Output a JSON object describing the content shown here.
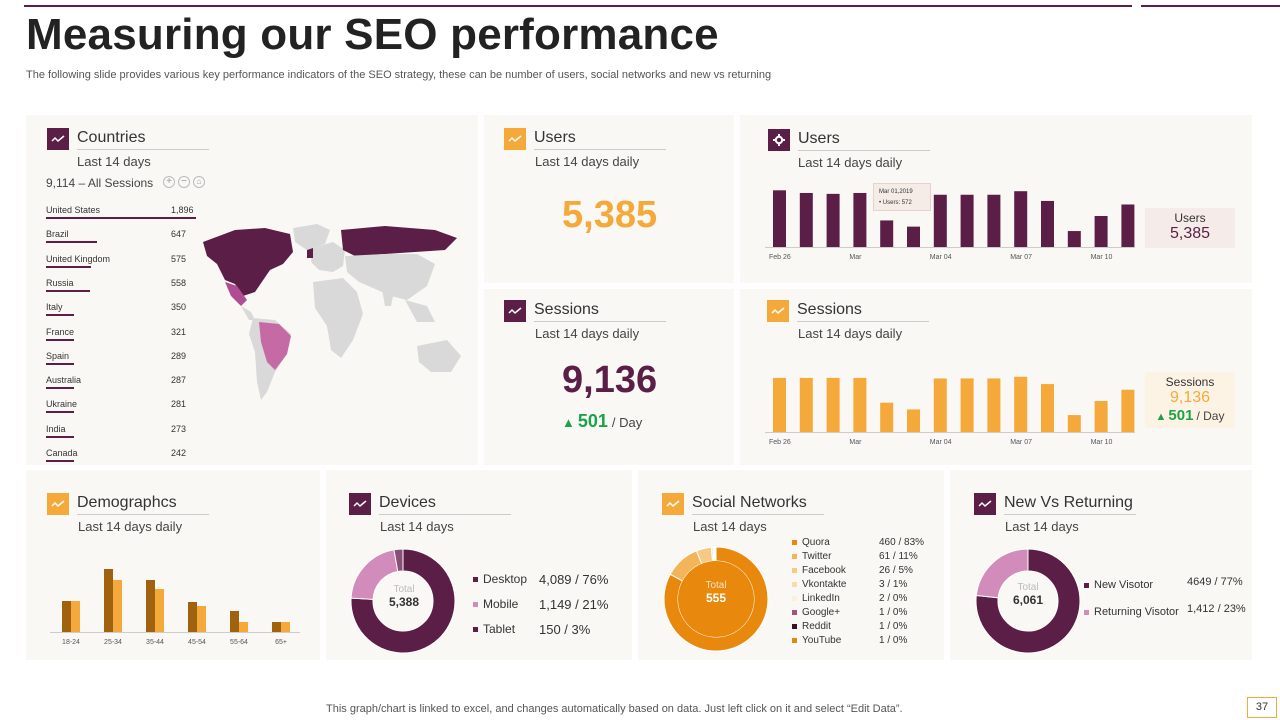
{
  "title": "Measuring our SEO performance",
  "subtitle": "The following slide provides various key performance indicators of the SEO strategy, these can be number of users, social networks and new vs returning",
  "footer": "This graph/chart is linked to excel,  and changes automatically based on data. Just left click on it and select “Edit Data”.",
  "page_number": "37",
  "colors": {
    "purple": "#5b1f47",
    "orange": "#f4a93a",
    "green": "#1aa34a",
    "pink": "#d18cbb"
  },
  "countries": {
    "title": "Countries",
    "period": "Last 14 days",
    "sessions_label": "9,114 – All Sessions",
    "rows": [
      {
        "name": "United States",
        "value": "1,896",
        "n": 1896
      },
      {
        "name": "Brazil",
        "value": "647",
        "n": 647
      },
      {
        "name": "United Kingdom",
        "value": "575",
        "n": 575
      },
      {
        "name": "Russia",
        "value": "558",
        "n": 558
      },
      {
        "name": "Italy",
        "value": "350",
        "n": 350
      },
      {
        "name": "France",
        "value": "321",
        "n": 321
      },
      {
        "name": "Spain",
        "value": "289",
        "n": 289
      },
      {
        "name": "Australia",
        "value": "287",
        "n": 287
      },
      {
        "name": "Ukraine",
        "value": "281",
        "n": 281
      },
      {
        "name": "India",
        "value": "273",
        "n": 273
      },
      {
        "name": "Canada",
        "value": "242",
        "n": 242
      }
    ]
  },
  "users_kpi": {
    "title": "Users",
    "period": "Last 14 days daily",
    "value": "5,385"
  },
  "sessions_kpi": {
    "title": "Sessions",
    "period": "Last 14 days daily",
    "value": "9,136",
    "delta": "501",
    "delta_unit": "/ Day"
  },
  "users_chart_panel": {
    "title": "Users",
    "period": "Last 14 days daily",
    "side_label": "Users",
    "side_value": "5,385",
    "tooltip_date": "Mar 01,2019",
    "tooltip_value": "Users: 572"
  },
  "sessions_chart_panel": {
    "title": "Sessions",
    "period": "Last 14 days daily",
    "side_label": "Sessions",
    "side_value": "9,136",
    "side_delta": "501",
    "side_delta_unit": "/ Day"
  },
  "demographics": {
    "title": "Demographcs",
    "period": "Last 14 days daily"
  },
  "devices": {
    "title": "Devices",
    "period": "Last 14 days",
    "total_label": "Total",
    "total_value": "5,388",
    "items": [
      {
        "name": "Desktop",
        "value": "4,089 / 76%",
        "color": "#5b1f47"
      },
      {
        "name": "Mobile",
        "value": "1,149 / 21%",
        "color": "#d18cbb"
      },
      {
        "name": "Tablet",
        "value": "150 / 3%",
        "color": "#5b1f47"
      }
    ]
  },
  "social": {
    "title": "Social Networks",
    "period": "Last 14 days",
    "total_label": "Total",
    "total_value": "555",
    "items": [
      {
        "name": "Quora",
        "value": "460 / 83%",
        "color": "#e8880c"
      },
      {
        "name": "Twitter",
        "value": "61 / 11%",
        "color": "#f4b55a"
      },
      {
        "name": "Facebook",
        "value": "26 / 5%",
        "color": "#f7c982"
      },
      {
        "name": "Vkontakte",
        "value": "3 / 1%",
        "color": "#fadbb0"
      },
      {
        "name": "LinkedIn",
        "value": "2 / 0%",
        "color": "#fcefdc"
      },
      {
        "name": "Google+",
        "value": "1 / 0%",
        "color": "#a0557f"
      },
      {
        "name": "Reddit",
        "value": "1 / 0%",
        "color": "#3a1230"
      },
      {
        "name": "YouTube",
        "value": "1 / 0%",
        "color": "#d98a1a"
      }
    ]
  },
  "new_vs_returning": {
    "title": "New Vs Returning",
    "period": "Last 14 days",
    "total_label": "Total",
    "total_value": "6,061",
    "items": [
      {
        "name": "New Visotor",
        "value": "4649 / 77%",
        "color": "#5b1f47"
      },
      {
        "name": "Returning Visotor",
        "value": "1,412 / 23%",
        "color": "#d18cbb"
      }
    ]
  },
  "chart_data": [
    {
      "type": "bar",
      "title": "Users",
      "x_tick_labels": [
        "Feb 26",
        "Mar",
        "Mar 04",
        "Mar 07",
        "Mar 10"
      ],
      "values": [
        640,
        610,
        600,
        610,
        300,
        230,
        590,
        590,
        590,
        630,
        520,
        180,
        350,
        480
      ],
      "ylim": [
        0,
        700
      ],
      "color": "#5b1f47"
    },
    {
      "type": "bar",
      "title": "Sessions",
      "x_tick_labels": [
        "Feb 26",
        "Mar",
        "Mar 04",
        "Mar 07",
        "Mar 10"
      ],
      "values": [
        960,
        960,
        960,
        960,
        520,
        400,
        950,
        950,
        950,
        980,
        850,
        300,
        550,
        750
      ],
      "ylim": [
        0,
        1100
      ],
      "color": "#f4a93a"
    },
    {
      "type": "bar",
      "title": "Demographcs",
      "categories": [
        "18-24",
        "25-34",
        "35-44",
        "45-54",
        "55-64",
        "65+"
      ],
      "series": [
        {
          "values": [
            31,
            63,
            52,
            30,
            21,
            10
          ],
          "color": "#a0620f"
        },
        {
          "values": [
            31,
            52,
            43,
            26,
            10,
            10
          ],
          "color": "#f4a93a"
        }
      ],
      "ylim": [
        0,
        70
      ]
    },
    {
      "type": "pie",
      "title": "Devices",
      "labels": [
        "Desktop",
        "Mobile",
        "Tablet"
      ],
      "values": [
        4089,
        1149,
        150
      ],
      "colors": [
        "#5b1f47",
        "#d18cbb",
        "#8a4f77"
      ]
    },
    {
      "type": "pie",
      "title": "Social Networks",
      "labels": [
        "Quora",
        "Twitter",
        "Facebook",
        "Vkontakte",
        "LinkedIn",
        "Google+",
        "Reddit",
        "YouTube"
      ],
      "values": [
        460,
        61,
        26,
        3,
        2,
        1,
        1,
        1
      ],
      "colors": [
        "#e8880c",
        "#f4b55a",
        "#f7c982",
        "#fadbb0",
        "#fcefdc",
        "#a0557f",
        "#3a1230",
        "#d98a1a"
      ]
    },
    {
      "type": "pie",
      "title": "New Vs Returning",
      "labels": [
        "New Visotor",
        "Returning Visotor"
      ],
      "values": [
        4649,
        1412
      ],
      "colors": [
        "#5b1f47",
        "#d18cbb"
      ]
    }
  ]
}
